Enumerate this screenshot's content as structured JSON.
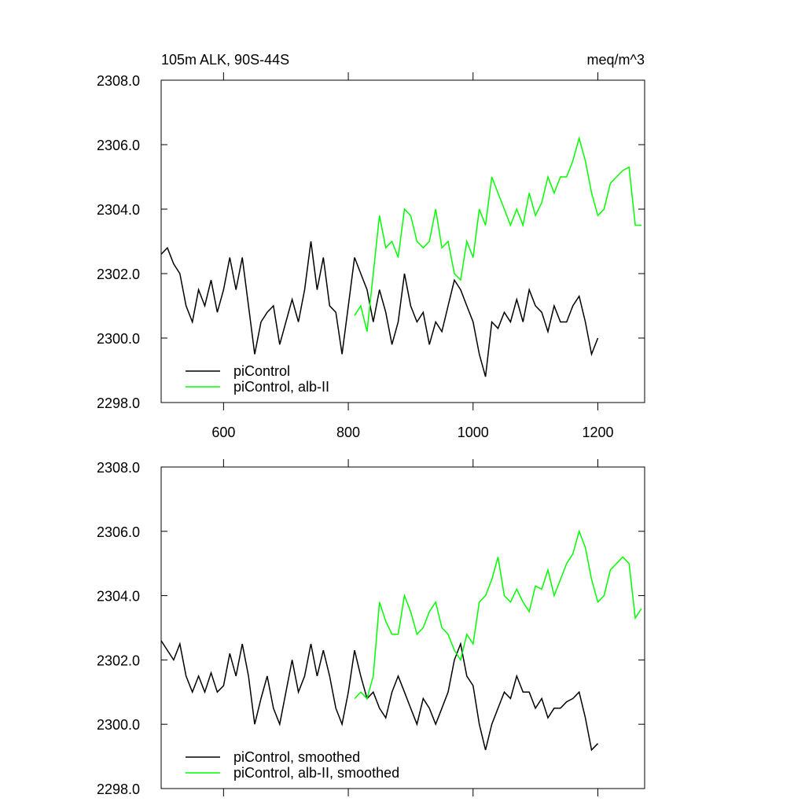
{
  "chart_data": [
    {
      "type": "line",
      "title": "105m ALK, 90S-44S",
      "units": "meq/m^3",
      "xlim": [
        500,
        1275
      ],
      "xticks": [
        600,
        800,
        1000,
        1200
      ],
      "xtick_labels": true,
      "ylim": [
        2298,
        2308
      ],
      "yticks": [
        {
          "value": 2298,
          "label": "2298.0"
        },
        {
          "value": 2300,
          "label": "2300.0"
        },
        {
          "value": 2302,
          "label": "2302.0"
        },
        {
          "value": 2304,
          "label": "2304.0"
        },
        {
          "value": 2306,
          "label": "2306.0"
        },
        {
          "value": 2308,
          "label": "2308.0"
        }
      ],
      "legend": "lower left",
      "series": [
        {
          "name": "piControl",
          "color": "#000000",
          "x": [
            500,
            510,
            520,
            530,
            540,
            550,
            560,
            570,
            580,
            590,
            600,
            610,
            620,
            630,
            640,
            650,
            660,
            670,
            680,
            690,
            700,
            710,
            720,
            730,
            740,
            750,
            760,
            770,
            780,
            790,
            800,
            810,
            820,
            830,
            840,
            850,
            860,
            870,
            880,
            890,
            900,
            910,
            920,
            930,
            940,
            950,
            960,
            970,
            980,
            990,
            1000,
            1010,
            1020,
            1030,
            1040,
            1050,
            1060,
            1070,
            1080,
            1090,
            1100,
            1110,
            1120,
            1130,
            1140,
            1150,
            1160,
            1170,
            1180,
            1190,
            1200
          ],
          "values": [
            2302.6,
            2302.8,
            2302.3,
            2302.0,
            2301.0,
            2300.5,
            2301.5,
            2301.0,
            2301.8,
            2300.8,
            2301.5,
            2302.5,
            2301.5,
            2302.5,
            2301.0,
            2299.5,
            2300.5,
            2300.8,
            2301.0,
            2299.8,
            2300.5,
            2301.2,
            2300.5,
            2301.5,
            2303.0,
            2301.5,
            2302.5,
            2301.0,
            2300.8,
            2299.5,
            2301.0,
            2302.5,
            2302.0,
            2301.5,
            2300.5,
            2301.5,
            2300.8,
            2299.8,
            2300.5,
            2302.0,
            2301.0,
            2300.5,
            2300.8,
            2299.8,
            2300.5,
            2300.2,
            2301.0,
            2301.8,
            2301.5,
            2301.0,
            2300.5,
            2299.5,
            2298.8,
            2300.5,
            2300.3,
            2300.8,
            2300.5,
            2301.2,
            2300.5,
            2301.5,
            2301.0,
            2300.8,
            2300.2,
            2301.0,
            2300.5,
            2300.5,
            2301.0,
            2301.3,
            2300.5,
            2299.5,
            2300.0
          ]
        },
        {
          "name": "piControl, alb-II",
          "color": "#00ff00",
          "x": [
            810,
            820,
            830,
            840,
            850,
            860,
            870,
            880,
            890,
            900,
            910,
            920,
            930,
            940,
            950,
            960,
            970,
            980,
            990,
            1000,
            1010,
            1020,
            1030,
            1040,
            1050,
            1060,
            1070,
            1080,
            1090,
            1100,
            1110,
            1120,
            1130,
            1140,
            1150,
            1160,
            1170,
            1180,
            1190,
            1200,
            1210,
            1220,
            1230,
            1240,
            1250,
            1260,
            1270
          ],
          "values": [
            2300.7,
            2301.0,
            2300.2,
            2302.0,
            2303.8,
            2302.8,
            2303.0,
            2302.5,
            2304.0,
            2303.8,
            2303.0,
            2302.8,
            2303.0,
            2304.0,
            2302.8,
            2303.0,
            2302.0,
            2301.8,
            2303.0,
            2302.5,
            2304.0,
            2303.5,
            2305.0,
            2304.5,
            2304.0,
            2303.5,
            2304.0,
            2303.5,
            2304.5,
            2303.8,
            2304.2,
            2305.0,
            2304.5,
            2305.0,
            2305.0,
            2305.5,
            2306.2,
            2305.5,
            2304.5,
            2303.8,
            2304.0,
            2304.8,
            2305.0,
            2305.2,
            2305.3,
            2303.5,
            2303.5
          ]
        }
      ]
    },
    {
      "type": "line",
      "xlim": [
        500,
        1275
      ],
      "xticks": [
        600,
        800,
        1000,
        1200
      ],
      "xtick_labels": false,
      "ylim": [
        2298,
        2308
      ],
      "yticks": [
        {
          "value": 2298,
          "label": "2298.0"
        },
        {
          "value": 2300,
          "label": "2300.0"
        },
        {
          "value": 2302,
          "label": "2302.0"
        },
        {
          "value": 2304,
          "label": "2304.0"
        },
        {
          "value": 2306,
          "label": "2306.0"
        },
        {
          "value": 2308,
          "label": "2308.0"
        }
      ],
      "legend": "lower left",
      "series": [
        {
          "name": "piControl, smoothed",
          "color": "#000000",
          "x": [
            500,
            510,
            520,
            530,
            540,
            550,
            560,
            570,
            580,
            590,
            600,
            610,
            620,
            630,
            640,
            650,
            660,
            670,
            680,
            690,
            700,
            710,
            720,
            730,
            740,
            750,
            760,
            770,
            780,
            790,
            800,
            810,
            820,
            830,
            840,
            850,
            860,
            870,
            880,
            890,
            900,
            910,
            920,
            930,
            940,
            950,
            960,
            970,
            980,
            990,
            1000,
            1010,
            1020,
            1030,
            1040,
            1050,
            1060,
            1070,
            1080,
            1090,
            1100,
            1110,
            1120,
            1130,
            1140,
            1150,
            1160,
            1170,
            1180,
            1190,
            1200
          ],
          "values": [
            2302.6,
            2302.3,
            2302.0,
            2302.5,
            2301.5,
            2301.0,
            2301.5,
            2301.0,
            2301.6,
            2301.0,
            2301.2,
            2302.2,
            2301.5,
            2302.5,
            2301.5,
            2300.0,
            2300.8,
            2301.5,
            2300.5,
            2300.0,
            2301.0,
            2302.0,
            2301.0,
            2301.5,
            2302.5,
            2301.5,
            2302.3,
            2301.5,
            2300.5,
            2300.0,
            2301.0,
            2302.3,
            2301.5,
            2300.8,
            2301.0,
            2300.5,
            2300.2,
            2301.0,
            2301.5,
            2301.0,
            2300.5,
            2300.0,
            2300.8,
            2300.5,
            2300.0,
            2300.5,
            2301.0,
            2302.0,
            2302.5,
            2301.5,
            2301.2,
            2300.0,
            2299.2,
            2300.0,
            2300.5,
            2301.0,
            2300.8,
            2301.5,
            2301.0,
            2301.0,
            2300.5,
            2300.8,
            2300.2,
            2300.5,
            2300.5,
            2300.7,
            2300.8,
            2301.0,
            2300.2,
            2299.2,
            2299.4
          ]
        },
        {
          "name": "piControl, alb-II, smoothed",
          "color": "#00ff00",
          "x": [
            810,
            820,
            830,
            840,
            850,
            860,
            870,
            880,
            890,
            900,
            910,
            920,
            930,
            940,
            950,
            960,
            970,
            980,
            990,
            1000,
            1010,
            1020,
            1030,
            1040,
            1050,
            1060,
            1070,
            1080,
            1090,
            1100,
            1110,
            1120,
            1130,
            1140,
            1150,
            1160,
            1170,
            1180,
            1190,
            1200,
            1210,
            1220,
            1230,
            1240,
            1250,
            1260,
            1270
          ],
          "values": [
            2300.8,
            2301.0,
            2300.8,
            2301.5,
            2303.8,
            2303.2,
            2302.8,
            2302.8,
            2304.0,
            2303.5,
            2302.8,
            2303.0,
            2303.5,
            2303.8,
            2303.0,
            2302.8,
            2302.3,
            2302.0,
            2302.8,
            2302.5,
            2303.8,
            2304.0,
            2304.5,
            2305.2,
            2304.0,
            2303.8,
            2304.2,
            2303.8,
            2303.5,
            2304.3,
            2304.2,
            2304.8,
            2304.0,
            2304.5,
            2305.0,
            2305.3,
            2306.0,
            2305.5,
            2304.5,
            2303.8,
            2304.0,
            2304.8,
            2305.0,
            2305.2,
            2305.0,
            2303.3,
            2303.6
          ]
        }
      ]
    }
  ]
}
